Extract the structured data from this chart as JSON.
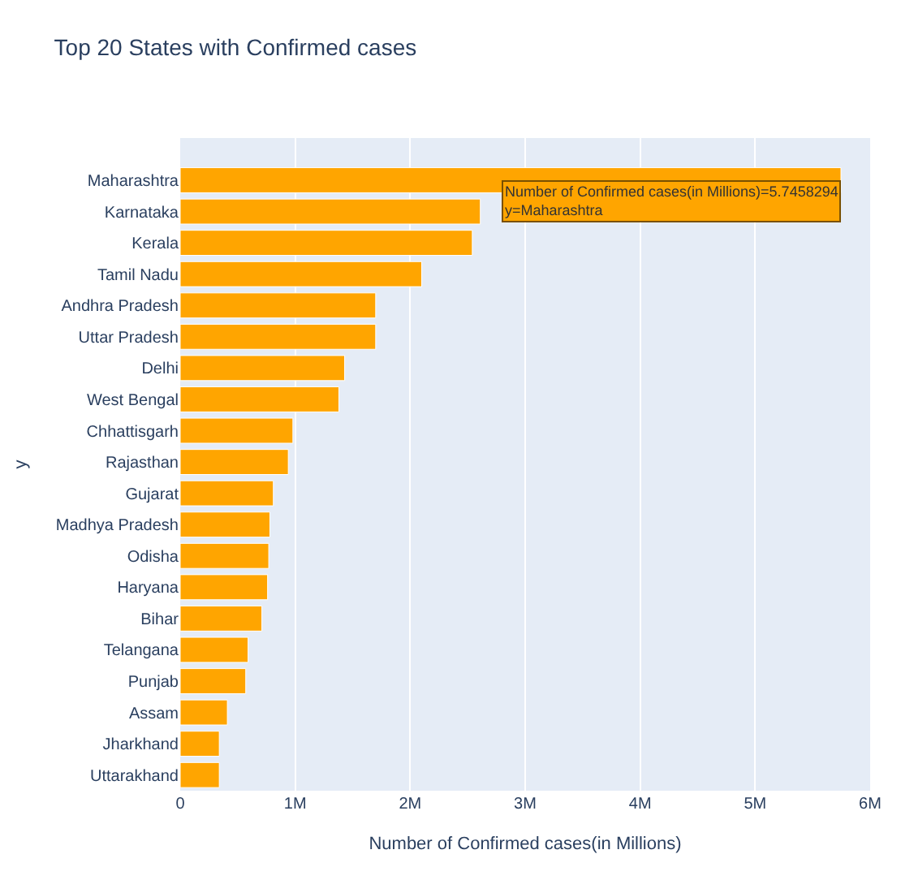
{
  "chart_data": {
    "type": "bar",
    "orientation": "horizontal",
    "title": "Top 20 States with Confirmed cases",
    "xlabel": "Number of Confirmed cases(in Millions)",
    "ylabel": "y",
    "categories": [
      "Maharashtra",
      "Karnataka",
      "Kerala",
      "Tamil Nadu",
      "Andhra Pradesh",
      "Uttar Pradesh",
      "Delhi",
      "West Bengal",
      "Chhattisgarh",
      "Rajasthan",
      "Gujarat",
      "Madhya Pradesh",
      "Odisha",
      "Haryana",
      "Bihar",
      "Telangana",
      "Punjab",
      "Assam",
      "Jharkhand",
      "Uttarakhand"
    ],
    "values": [
      5.7458294,
      2.61,
      2.54,
      2.1,
      1.7,
      1.7,
      1.43,
      1.38,
      0.98,
      0.94,
      0.81,
      0.78,
      0.77,
      0.76,
      0.71,
      0.59,
      0.57,
      0.41,
      0.34,
      0.34
    ],
    "color": "#ffa500",
    "xlim": [
      0,
      6
    ],
    "xticks": [
      {
        "value": 0,
        "label": "0"
      },
      {
        "value": 1,
        "label": "1M"
      },
      {
        "value": 2,
        "label": "2M"
      },
      {
        "value": 3,
        "label": "3M"
      },
      {
        "value": 4,
        "label": "4M"
      },
      {
        "value": 5,
        "label": "5M"
      },
      {
        "value": 6,
        "label": "6M"
      }
    ],
    "grid": "x",
    "legend": false,
    "annotations": [
      {
        "text": "Number of Confirmed cases(in Millions)=5.7458294\ny=Maharashtra",
        "x": 5.7458294,
        "y": "Maharashtra"
      }
    ]
  }
}
